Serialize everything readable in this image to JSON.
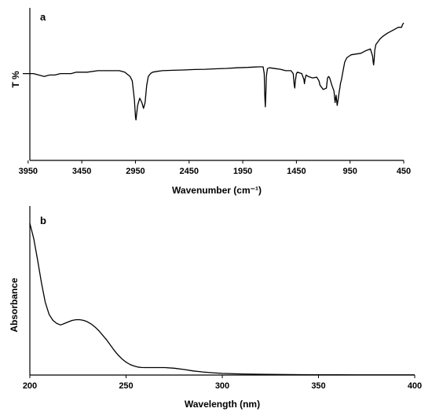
{
  "chart_data": [
    {
      "type": "line",
      "panel_label": "a",
      "xlabel": "Wavenumber (cm⁻¹)",
      "ylabel": "T %",
      "xlim": [
        4000,
        450
      ],
      "x_reversed": true,
      "ylim": [
        0,
        100
      ],
      "y_ticks_shown": false,
      "xticks": [
        3950,
        3450,
        2950,
        2450,
        1950,
        1450,
        950,
        450
      ],
      "series": [
        {
          "x": [
            4000,
            3900,
            3800,
            3750,
            3700,
            3650,
            3600,
            3550,
            3500,
            3450,
            3400,
            3300,
            3200,
            3100,
            3050,
            3000,
            2980,
            2960,
            2950,
            2945,
            2930,
            2910,
            2890,
            2875,
            2860,
            2845,
            2830,
            2810,
            2790,
            2750,
            2700,
            2600,
            2500,
            2400,
            2300,
            2200,
            2100,
            2000,
            1900,
            1850,
            1800,
            1760,
            1750,
            1745,
            1740,
            1735,
            1730,
            1720,
            1700,
            1650,
            1600,
            1550,
            1500,
            1480,
            1470,
            1465,
            1460,
            1450,
            1440,
            1400,
            1380,
            1375,
            1370,
            1360,
            1340,
            1300,
            1260,
            1240,
            1230,
            1200,
            1170,
            1160,
            1150,
            1140,
            1120,
            1100,
            1090,
            1080,
            1070,
            1060,
            1050,
            1045,
            1040,
            1030,
            1020,
            1000,
            980,
            960,
            940,
            900,
            850,
            800,
            760,
            740,
            735,
            730,
            725,
            720,
            710,
            690,
            670,
            640,
            600,
            550,
            500,
            470,
            460,
            450
          ],
          "y": [
            60,
            60,
            58,
            59,
            59,
            60,
            60,
            60,
            61,
            61,
            61,
            62,
            62,
            62,
            61,
            58,
            55,
            42,
            30,
            28,
            38,
            43,
            40,
            36,
            40,
            52,
            58,
            60,
            61,
            61.5,
            62,
            62.3,
            62.5,
            62.8,
            63,
            63.3,
            63.6,
            64,
            64.3,
            64.5,
            64.7,
            64.7,
            60,
            45,
            37,
            45,
            58,
            63.5,
            64,
            63.5,
            63,
            62,
            62,
            60,
            52,
            50,
            55,
            60,
            61,
            60,
            56,
            53,
            56,
            59,
            58,
            57,
            57.5,
            55,
            52,
            49,
            50,
            57,
            58,
            57,
            52,
            48,
            40,
            45,
            38,
            43,
            48,
            50,
            53,
            56,
            60,
            68,
            71,
            72,
            73,
            73.5,
            74,
            76,
            77,
            72,
            68,
            66,
            70,
            76,
            80,
            82,
            84,
            86,
            88,
            90,
            92,
            92,
            94,
            95
          ]
        }
      ]
    },
    {
      "type": "line",
      "panel_label": "b",
      "xlabel": "Wavelength (nm)",
      "ylabel": "Absorbance",
      "xlim": [
        200,
        400
      ],
      "ylim": [
        0,
        100
      ],
      "y_ticks_shown": false,
      "xticks": [
        200,
        250,
        300,
        350,
        400
      ],
      "series": [
        {
          "x": [
            200,
            202,
            204,
            206,
            208,
            210,
            212,
            214,
            216,
            218,
            220,
            222,
            224,
            226,
            228,
            230,
            232,
            234,
            236,
            238,
            240,
            242,
            244,
            246,
            248,
            250,
            252,
            254,
            256,
            258,
            260,
            265,
            270,
            275,
            280,
            285,
            290,
            295,
            300,
            310,
            320,
            330,
            340,
            350,
            360,
            370,
            380,
            390,
            400
          ],
          "y": [
            100,
            90,
            76,
            61,
            48,
            40,
            36,
            34,
            33,
            34,
            35,
            36,
            36.5,
            36.5,
            36,
            35,
            33.5,
            31.5,
            29,
            26,
            23,
            19.5,
            16,
            13,
            10.5,
            8.5,
            7,
            6,
            5.3,
            5,
            4.9,
            4.9,
            4.9,
            4.5,
            3.7,
            2.7,
            2,
            1.5,
            1.1,
            0.7,
            0.5,
            0.35,
            0.25,
            0.2,
            0.15,
            0.12,
            0.1,
            0.1,
            0.1
          ]
        }
      ]
    }
  ]
}
